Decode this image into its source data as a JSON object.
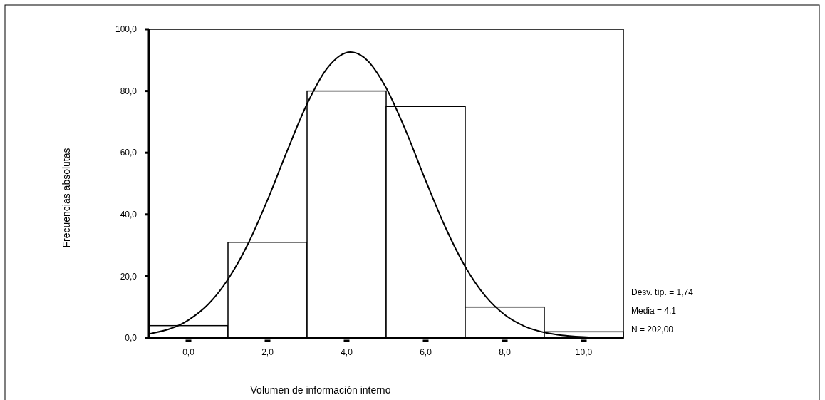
{
  "chart_data": {
    "type": "histogram",
    "xlabel": "Volumen de información interno",
    "ylabel": "Frecuencias absolutas",
    "xlim": [
      -1,
      11
    ],
    "ylim": [
      0,
      100
    ],
    "xticks": [
      {
        "value": 0,
        "label": "0,0"
      },
      {
        "value": 2,
        "label": "2,0"
      },
      {
        "value": 4,
        "label": "4,0"
      },
      {
        "value": 6,
        "label": "6,0"
      },
      {
        "value": 8,
        "label": "8,0"
      },
      {
        "value": 10,
        "label": "10,0"
      }
    ],
    "yticks": [
      {
        "value": 0,
        "label": "0,0"
      },
      {
        "value": 20,
        "label": "20,0"
      },
      {
        "value": 40,
        "label": "40,0"
      },
      {
        "value": 60,
        "label": "60,0"
      },
      {
        "value": 80,
        "label": "80,0"
      },
      {
        "value": 100,
        "label": "100,0"
      }
    ],
    "grid": false,
    "series": [
      {
        "color": "#ffffff",
        "bins": [
          -1,
          1,
          3,
          5,
          7,
          9,
          11
        ],
        "values": [
          4,
          31,
          80,
          75,
          10,
          2
        ]
      },
      {
        "type": "line",
        "color": "#000000",
        "x": [
          -1,
          0,
          0.5,
          1,
          1.5,
          2,
          2.5,
          3,
          3.5,
          4.1,
          4.5,
          5,
          5.5,
          6,
          6.5,
          7,
          7.5,
          8,
          8.5,
          9,
          9.5,
          10.2
        ],
        "values": [
          1.3,
          5.8,
          10.9,
          19,
          30.3,
          44.7,
          60.7,
          75.8,
          87.2,
          92.6,
          90.2,
          81,
          67,
          51,
          35.8,
          23.1,
          13.7,
          7.5,
          3.8,
          1.8,
          0.8,
          0.2
        ]
      }
    ],
    "annotations": [
      "Desv. típ. = 1,74",
      "Media = 4,1",
      "N = 202,00"
    ]
  }
}
